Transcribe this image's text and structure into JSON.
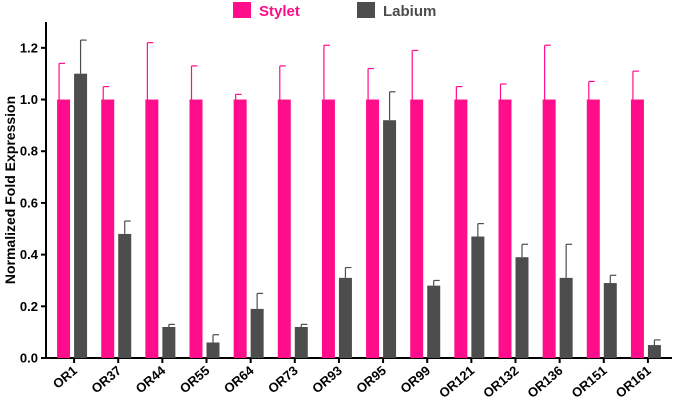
{
  "chart_data": {
    "type": "bar",
    "ylabel": "Normalized Fold Expression",
    "xlabel": "",
    "ylim": [
      0,
      1.3
    ],
    "yticks": [
      "0.0",
      "0.2",
      "0.4",
      "0.6",
      "0.8",
      "1.0",
      "1.2"
    ],
    "legend_position": "top-center",
    "categories": [
      "OR1",
      "OR37",
      "OR44",
      "OR55",
      "OR64",
      "OR73",
      "OR93",
      "OR95",
      "OR99",
      "OR121",
      "OR132",
      "OR136",
      "OR151",
      "OR161"
    ],
    "series": [
      {
        "name": "Stylet",
        "color": "#FF0D8B",
        "values": [
          1.0,
          1.0,
          1.0,
          1.0,
          1.0,
          1.0,
          1.0,
          1.0,
          1.0,
          1.0,
          1.0,
          1.0,
          1.0,
          1.0
        ],
        "errors": [
          0.14,
          0.05,
          0.22,
          0.13,
          0.02,
          0.13,
          0.21,
          0.12,
          0.19,
          0.05,
          0.06,
          0.21,
          0.07,
          0.11
        ]
      },
      {
        "name": "Labium",
        "color": "#4D4D4D",
        "values": [
          1.1,
          0.48,
          0.12,
          0.06,
          0.19,
          0.12,
          0.31,
          0.92,
          0.28,
          0.47,
          0.39,
          0.31,
          0.29,
          0.05
        ],
        "errors": [
          0.13,
          0.05,
          0.01,
          0.03,
          0.06,
          0.01,
          0.04,
          0.11,
          0.02,
          0.05,
          0.05,
          0.13,
          0.03,
          0.02
        ]
      }
    ]
  }
}
